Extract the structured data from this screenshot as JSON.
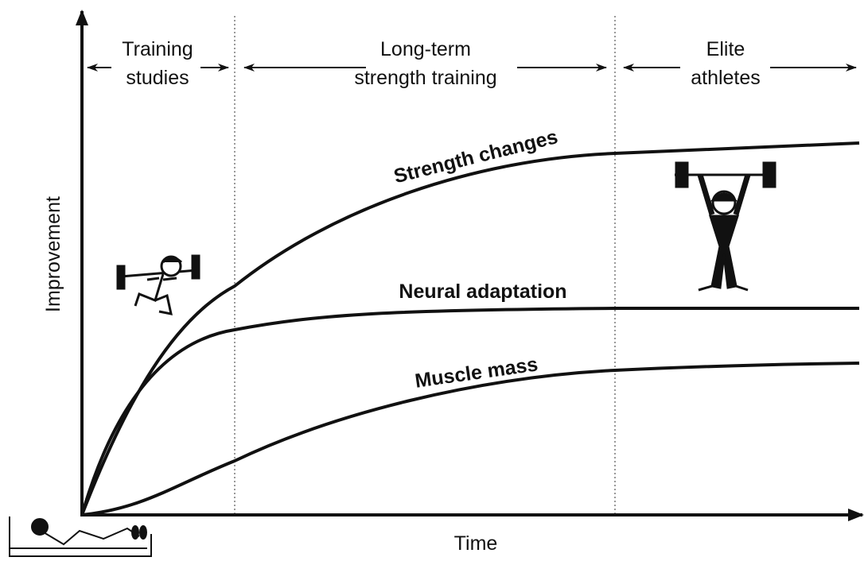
{
  "axes": {
    "x_label": "Time",
    "y_label": "Improvement"
  },
  "phases": [
    {
      "lines": [
        "Training",
        "studies"
      ]
    },
    {
      "lines": [
        "Long-term",
        "strength training"
      ]
    },
    {
      "lines": [
        "Elite",
        "athletes"
      ]
    }
  ],
  "curves": [
    {
      "label": "Strength changes"
    },
    {
      "label": "Neural adaptation"
    },
    {
      "label": "Muscle mass"
    }
  ]
}
